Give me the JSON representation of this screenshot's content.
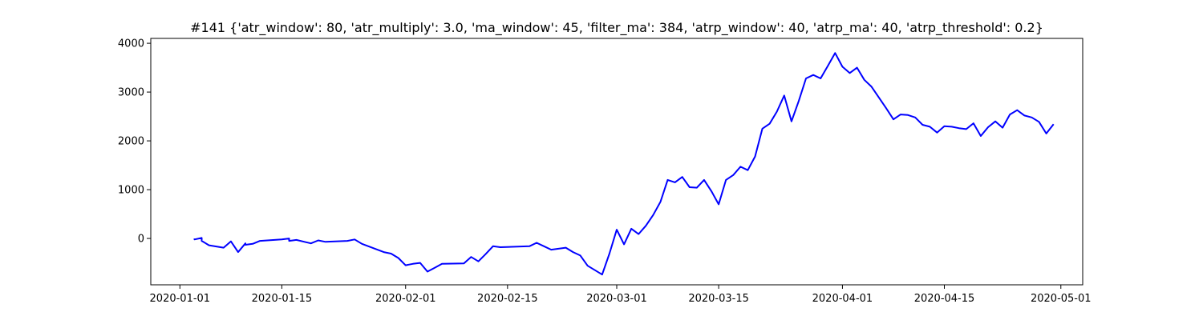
{
  "chart_data": {
    "type": "line",
    "title": "#141 {'atr_window': 80, 'atr_multiply': 3.0, 'ma_window': 45, 'filter_ma': 384, 'atrp_window': 40, 'atrp_ma': 40, 'atrp_threshold': 0.2}",
    "xlabel": "",
    "ylabel": "",
    "x_type": "date",
    "xlim": [
      "2019-12-28",
      "2020-05-04"
    ],
    "ylim": [
      -950,
      4100
    ],
    "grid": false,
    "legend": "none",
    "color": "#0000ff",
    "x_ticks": [
      "2020-01-01",
      "2020-01-15",
      "2020-02-01",
      "2020-02-15",
      "2020-03-01",
      "2020-03-15",
      "2020-04-01",
      "2020-04-15",
      "2020-05-01"
    ],
    "y_ticks": [
      0,
      1000,
      2000,
      3000,
      4000
    ],
    "series": [
      {
        "x": [
          "2020-01-03",
          "2020-01-03",
          "2020-01-04",
          "2020-01-04",
          "2020-01-05",
          "2020-01-07",
          "2020-01-08",
          "2020-01-09",
          "2020-01-10",
          "2020-01-10",
          "2020-01-11",
          "2020-01-12",
          "2020-01-15",
          "2020-01-16",
          "2020-01-16",
          "2020-01-17",
          "2020-01-19",
          "2020-01-20",
          "2020-01-21",
          "2020-01-24",
          "2020-01-25",
          "2020-01-26",
          "2020-01-29",
          "2020-01-30",
          "2020-01-31",
          "2020-02-01",
          "2020-02-02",
          "2020-02-03",
          "2020-02-04",
          "2020-02-05",
          "2020-02-06",
          "2020-02-09",
          "2020-02-10",
          "2020-02-11",
          "2020-02-12",
          "2020-02-13",
          "2020-02-14",
          "2020-02-18",
          "2020-02-19",
          "2020-02-20",
          "2020-02-21",
          "2020-02-22",
          "2020-02-23",
          "2020-02-24",
          "2020-02-25",
          "2020-02-26",
          "2020-02-27",
          "2020-02-28",
          "2020-02-29",
          "2020-03-01",
          "2020-03-02",
          "2020-03-03",
          "2020-03-04",
          "2020-03-05",
          "2020-03-06",
          "2020-03-07",
          "2020-03-08",
          "2020-03-09",
          "2020-03-10",
          "2020-03-11",
          "2020-03-12",
          "2020-03-13",
          "2020-03-14",
          "2020-03-15",
          "2020-03-16",
          "2020-03-17",
          "2020-03-18",
          "2020-03-19",
          "2020-03-20",
          "2020-03-21",
          "2020-03-22",
          "2020-03-23",
          "2020-03-24",
          "2020-03-25",
          "2020-03-26",
          "2020-03-27",
          "2020-03-28",
          "2020-03-29",
          "2020-03-30",
          "2020-03-31",
          "2020-04-01",
          "2020-04-02",
          "2020-04-03",
          "2020-04-04",
          "2020-04-05",
          "2020-04-06",
          "2020-04-07",
          "2020-04-08",
          "2020-04-09",
          "2020-04-10",
          "2020-04-11",
          "2020-04-12",
          "2020-04-13",
          "2020-04-14",
          "2020-04-15",
          "2020-04-16",
          "2020-04-17",
          "2020-04-18",
          "2020-04-19",
          "2020-04-20",
          "2020-04-21",
          "2020-04-22",
          "2020-04-23",
          "2020-04-24",
          "2020-04-25",
          "2020-04-26",
          "2020-04-27",
          "2020-04-28",
          "2020-04-29",
          "2020-04-30"
        ],
        "y": [
          0,
          -20,
          10,
          -50,
          -140,
          -190,
          -60,
          -280,
          -100,
          -130,
          -110,
          -50,
          -20,
          0,
          -50,
          -30,
          -100,
          -40,
          -70,
          -50,
          -20,
          -110,
          -280,
          -310,
          -400,
          -550,
          -520,
          -500,
          -680,
          -600,
          -520,
          -510,
          -380,
          -470,
          -320,
          -160,
          -180,
          -160,
          -90,
          -160,
          -230,
          -210,
          -190,
          -280,
          -350,
          -560,
          -650,
          -740,
          -310,
          180,
          -120,
          200,
          90,
          260,
          480,
          750,
          1200,
          1150,
          1260,
          1050,
          1040,
          1200,
          970,
          700,
          1200,
          1300,
          1470,
          1400,
          1680,
          2250,
          2350,
          2600,
          2930,
          2400,
          2820,
          3280,
          3350,
          3280,
          3540,
          3800,
          3520,
          3390,
          3500,
          3250,
          3110,
          2890,
          2670,
          2440,
          2540,
          2530,
          2480,
          2330,
          2290,
          2170,
          2300,
          2290,
          2260,
          2240,
          2360,
          2100,
          2280,
          2400,
          2270,
          2540,
          2630,
          2520,
          2480,
          2390,
          2150,
          2340
        ]
      }
    ]
  }
}
